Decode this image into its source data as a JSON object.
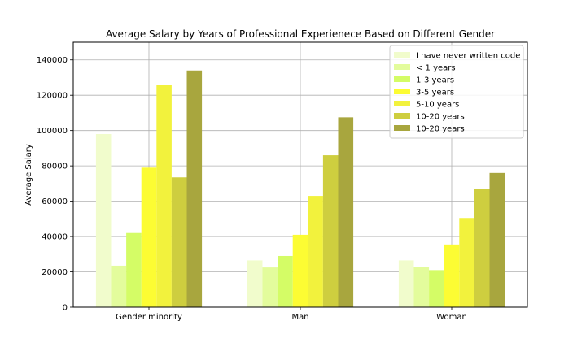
{
  "chart_data": {
    "type": "bar",
    "title": "Average Salary by Years of Professional Experienece Based on Different Gender",
    "xlabel": "",
    "ylabel": "Average Salary",
    "categories": [
      "Gender minority",
      "Man",
      "Woman"
    ],
    "ylim": [
      0,
      150000
    ],
    "yticks": [
      0,
      20000,
      40000,
      60000,
      80000,
      100000,
      120000,
      140000
    ],
    "grid": true,
    "legend_position": "top-right",
    "series": [
      {
        "name": "I have never written code",
        "color": "#f1fccc",
        "values": [
          98000,
          26500,
          26500
        ]
      },
      {
        "name": "< 1 years",
        "color": "#e3fc9c",
        "values": [
          23500,
          22500,
          23000
        ]
      },
      {
        "name": "1-3 years",
        "color": "#d4fc66",
        "values": [
          42000,
          29000,
          21000
        ]
      },
      {
        "name": "3-5 years",
        "color": "#fcfc33",
        "values": [
          79000,
          41000,
          35500
        ]
      },
      {
        "name": "5-10 years",
        "color": "#f2f23d",
        "values": [
          126000,
          63000,
          50500
        ]
      },
      {
        "name": "10-20 years",
        "color": "#cece3f",
        "values": [
          73500,
          86000,
          67000
        ]
      },
      {
        "name": "10-20 years",
        "color": "#a8a63e",
        "values": [
          134000,
          107500,
          76000
        ]
      }
    ]
  }
}
